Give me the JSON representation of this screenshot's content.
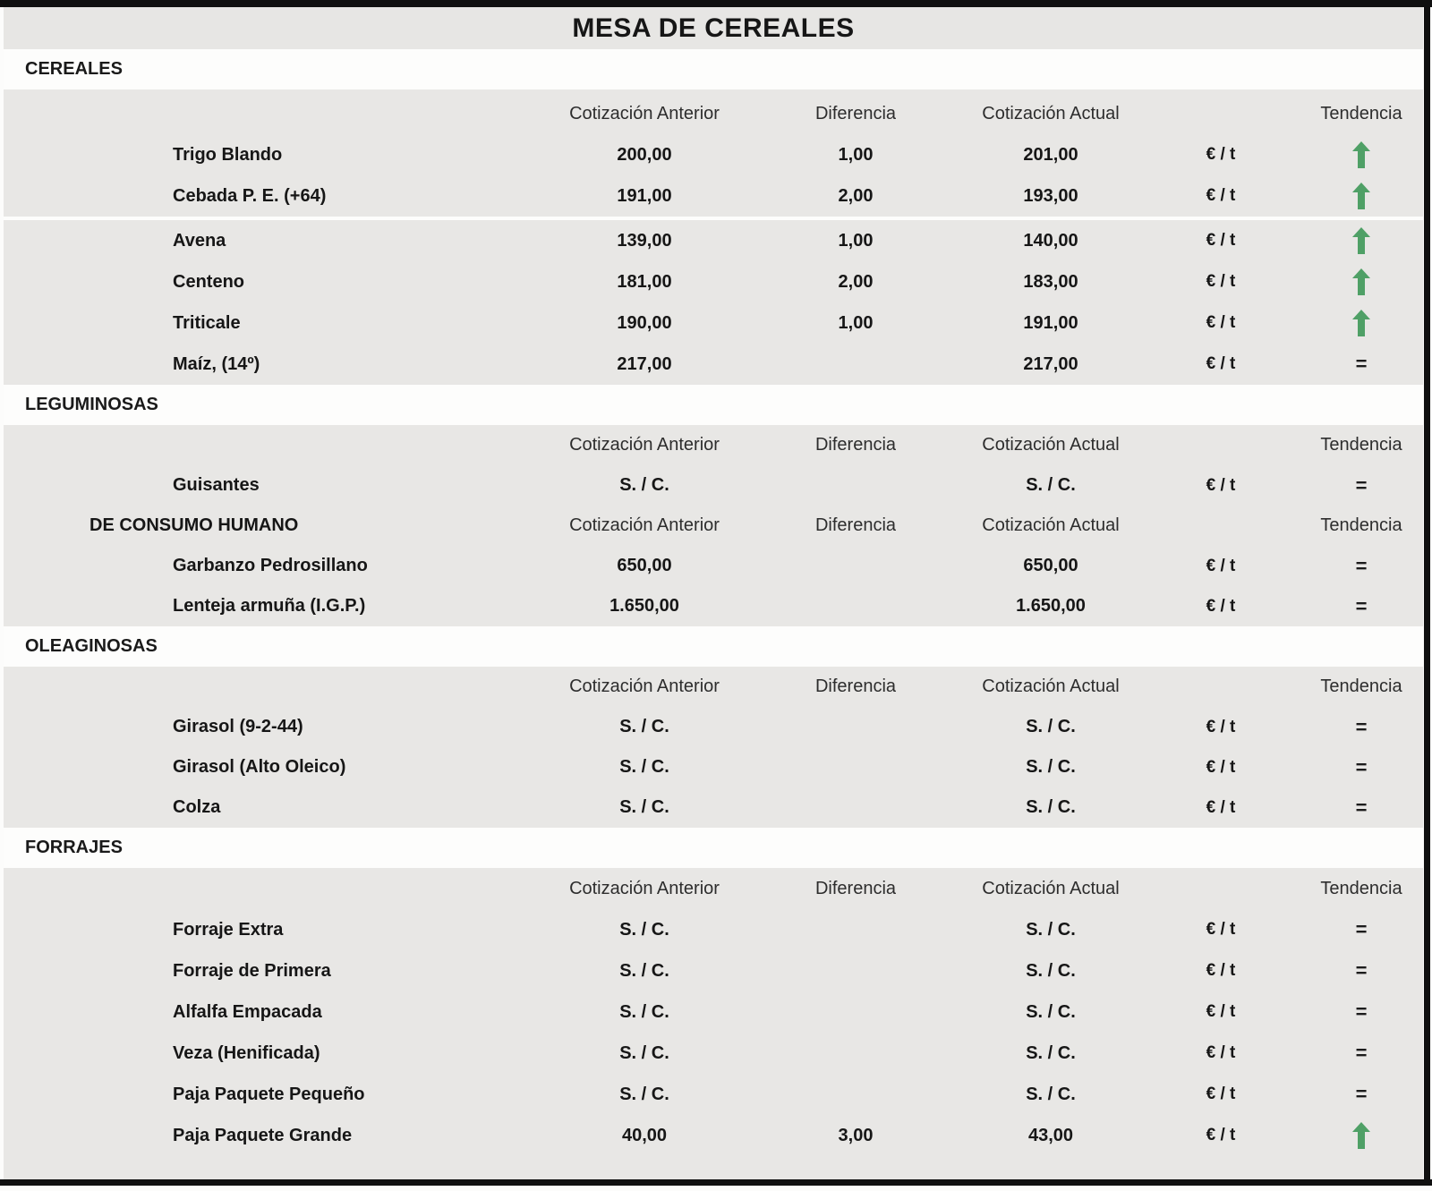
{
  "title": "MESA DE CEREALES",
  "columns": {
    "anterior": "Cotización Anterior",
    "diferencia": "Diferencia",
    "actual": "Cotización Actual",
    "tendencia": "Tendencia"
  },
  "unit": "€ / t",
  "trend_glyphs": {
    "equal": "="
  },
  "colors": {
    "trend_up_green": "#4fa066",
    "table_bg": "#e8e7e5"
  },
  "sections": [
    {
      "name": "CEREALES",
      "rows": [
        {
          "type": "colheader",
          "label": ""
        },
        {
          "type": "data",
          "label": "Trigo Blando",
          "anterior": "200,00",
          "diferencia": "1,00",
          "actual": "201,00",
          "trend": "up"
        },
        {
          "type": "data",
          "label": "Cebada P. E. (+64)",
          "anterior": "191,00",
          "diferencia": "2,00",
          "actual": "193,00",
          "trend": "up"
        },
        {
          "type": "divider"
        },
        {
          "type": "data",
          "label": "Avena",
          "anterior": "139,00",
          "diferencia": "1,00",
          "actual": "140,00",
          "trend": "up"
        },
        {
          "type": "data",
          "label": "Centeno",
          "anterior": "181,00",
          "diferencia": "2,00",
          "actual": "183,00",
          "trend": "up"
        },
        {
          "type": "data",
          "label": "Triticale",
          "anterior": "190,00",
          "diferencia": "1,00",
          "actual": "191,00",
          "trend": "up"
        },
        {
          "type": "data",
          "label": "Maíz, (14º)",
          "anterior": "217,00",
          "diferencia": "",
          "actual": "217,00",
          "trend": "equal"
        }
      ]
    },
    {
      "name": "LEGUMINOSAS",
      "rows": [
        {
          "type": "colheader",
          "label": ""
        },
        {
          "type": "data",
          "label": "Guisantes",
          "anterior": "S. / C.",
          "diferencia": "",
          "actual": "S. / C.",
          "trend": "equal"
        },
        {
          "type": "colheader",
          "label": "DE CONSUMO HUMANO"
        },
        {
          "type": "data",
          "label": "Garbanzo Pedrosillano",
          "anterior": "650,00",
          "diferencia": "",
          "actual": "650,00",
          "trend": "equal"
        },
        {
          "type": "data",
          "label": "Lenteja armuña (I.G.P.)",
          "anterior": "1.650,00",
          "diferencia": "",
          "actual": "1.650,00",
          "trend": "equal"
        }
      ]
    },
    {
      "name": "OLEAGINOSAS",
      "rows": [
        {
          "type": "colheader",
          "label": ""
        },
        {
          "type": "data",
          "label": "Girasol (9-2-44)",
          "anterior": "S. / C.",
          "diferencia": "",
          "actual": "S. / C.",
          "trend": "equal"
        },
        {
          "type": "data",
          "label": "Girasol (Alto Oleico)",
          "anterior": "S. / C.",
          "diferencia": "",
          "actual": "S. / C.",
          "trend": "equal"
        },
        {
          "type": "data",
          "label": "Colza",
          "anterior": "S. / C.",
          "diferencia": "",
          "actual": "S. / C.",
          "trend": "equal"
        }
      ]
    },
    {
      "name": "FORRAJES",
      "rows": [
        {
          "type": "colheader",
          "label": ""
        },
        {
          "type": "data",
          "label": "Forraje Extra",
          "anterior": "S. / C.",
          "diferencia": "",
          "actual": "S. / C.",
          "trend": "equal"
        },
        {
          "type": "data",
          "label": "Forraje de Primera",
          "anterior": "S. / C.",
          "diferencia": "",
          "actual": "S. / C.",
          "trend": "equal"
        },
        {
          "type": "data",
          "label": "Alfalfa Empacada",
          "anterior": "S. / C.",
          "diferencia": "",
          "actual": "S. / C.",
          "trend": "equal"
        },
        {
          "type": "data",
          "label": "Veza (Henificada)",
          "anterior": "S. / C.",
          "diferencia": "",
          "actual": "S. / C.",
          "trend": "equal"
        },
        {
          "type": "data",
          "label": "Paja Paquete Pequeño",
          "anterior": "S. / C.",
          "diferencia": "",
          "actual": "S. / C.",
          "trend": "equal"
        },
        {
          "type": "data",
          "label": "Paja Paquete Grande",
          "anterior": "40,00",
          "diferencia": "3,00",
          "actual": "43,00",
          "trend": "up"
        }
      ]
    }
  ]
}
